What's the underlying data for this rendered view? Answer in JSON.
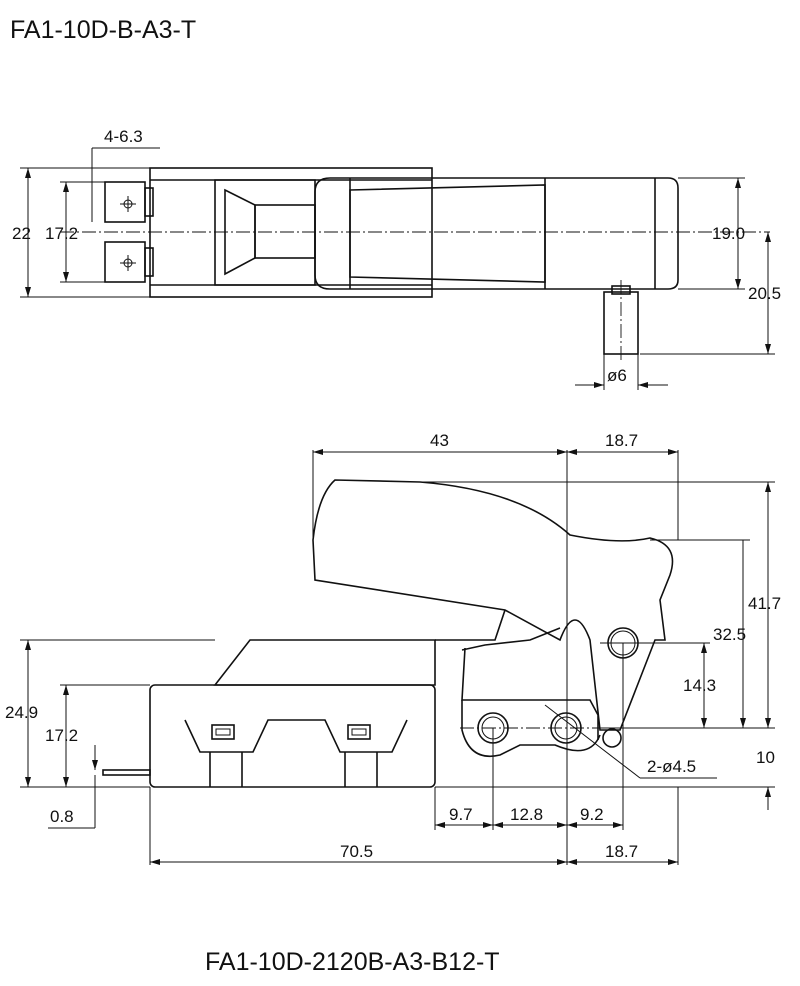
{
  "titles": {
    "top": "FA1-10D-B-A3-T",
    "bottom": "FA1-10D-2120B-A3-B12-T"
  },
  "top_view": {
    "terminal_spec": "4-6.3",
    "height_outer": "22",
    "terminal_pitch": "17.2",
    "trigger_height": "19.0",
    "plunger_offset": "20.5",
    "plunger_diameter": "ø6"
  },
  "side_view": {
    "trigger_length": "43",
    "trigger_offset": "18.7",
    "overall_height": "41.7",
    "pivot_height": "32.5",
    "hole_height": "14.3",
    "body_height": "24.9",
    "body_step": "17.2",
    "bottom_offset": "10",
    "hole_spec": "2-ø4.5",
    "terminal_thickness": "0.8",
    "hole_spacing_1": "9.7",
    "hole_spacing_2": "12.8",
    "hole_spacing_3": "9.2",
    "body_length": "70.5",
    "trigger_right": "18.7"
  }
}
